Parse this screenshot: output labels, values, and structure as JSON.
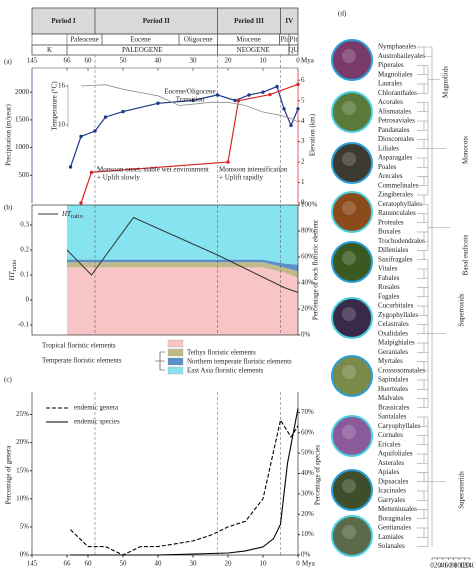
{
  "figure": {
    "timeline": {
      "periods": [
        {
          "label": "Period I",
          "start": 145,
          "end": 58
        },
        {
          "label": "Period II",
          "start": 58,
          "end": 23
        },
        {
          "label": "Period III",
          "start": 23,
          "end": 5
        },
        {
          "label": "IV",
          "start": 5,
          "end": 0
        }
      ],
      "epochs": [
        {
          "label": "Paleocene",
          "start": 66,
          "end": 56
        },
        {
          "label": "Eocene",
          "start": 56,
          "end": 34
        },
        {
          "label": "Oligocene",
          "start": 34,
          "end": 23
        },
        {
          "label": "Miocene",
          "start": 23,
          "end": 5.3
        },
        {
          "label": "Pli",
          "start": 5.3,
          "end": 2.6
        },
        {
          "label": "Plt",
          "start": 2.6,
          "end": 0
        }
      ],
      "eras": [
        {
          "label": "K",
          "start": 145,
          "end": 66
        },
        {
          "label": "PALEOGENE",
          "start": 66,
          "end": 23
        },
        {
          "label": "NEOGENE",
          "start": 23,
          "end": 2.6
        },
        {
          "label": "QU",
          "start": 2.6,
          "end": 0
        }
      ]
    },
    "panel_d": {
      "label": "(d)",
      "orders": [
        "Nymphaeales",
        "Austrobaileyales",
        "Piperales",
        "Magnoliales",
        "Laurales",
        "Chloranthales",
        "Acorales",
        "Alismatales",
        "Petrosaviales",
        "Pandanales",
        "Dioscoreales",
        "Liliales",
        "Asparagales",
        "Poales",
        "Arecales",
        "Commelinales",
        "Zingiberales",
        "Ceratophyllales",
        "Ranunculales",
        "Proteales",
        "Buxales",
        "Trochodendrales",
        "Dilleniales",
        "Saxifragales",
        "Vitales",
        "Fabales",
        "Rosales",
        "Fagales",
        "Cucurbitales",
        "Zygophyllales",
        "Celastrales",
        "Oxalidales",
        "Malpighiales",
        "Geraniales",
        "Myrtales",
        "Crossosomatales",
        "Sapindales",
        "Huerteales",
        "Malvales",
        "Brassicales",
        "Santalales",
        "Caryophyllales",
        "Cornales",
        "Ericales",
        "Aquifoliales",
        "Asterales",
        "Apiales",
        "Dipsacales",
        "Icacinales",
        "Garryales",
        "Metteniusales",
        "Boraginales",
        "Gentianales",
        "Lamiales",
        "Solanales"
      ],
      "groups": [
        "Magnoliids",
        "Monocots",
        "Basal eudicots",
        "Superrosids",
        "Superasterids"
      ],
      "xlim": [
        0,
        140
      ],
      "xticks": [
        0,
        20,
        40,
        60,
        80,
        100,
        120,
        140
      ]
    }
  },
  "chart_data": [
    {
      "type": "line",
      "label": "(a)",
      "x_label": "Mya",
      "xlim": [
        145,
        0
      ],
      "xticks": [
        145,
        66,
        60,
        50,
        40,
        30,
        20,
        10,
        0
      ],
      "ylim": [
        0,
        2400
      ],
      "yticks": [
        500,
        1000,
        1500,
        2000
      ],
      "y_label": "Precipitation (m/year)",
      "y2lim": [
        0,
        6.5
      ],
      "y2ticks": [
        0,
        1,
        2,
        3,
        4,
        5,
        6
      ],
      "y2_label": "Elevation (km)",
      "y3lim": [
        10,
        16
      ],
      "y3ticks": [
        10,
        16
      ],
      "y3_label": "Temperature (°C)",
      "series": [
        {
          "color": "#1f3a8a",
          "axis": "y",
          "x": [
            65,
            62,
            58,
            55,
            50,
            40,
            30,
            23,
            18,
            14,
            10,
            6,
            4,
            2,
            0
          ],
          "values": [
            650,
            1200,
            1300,
            1550,
            1650,
            1800,
            1850,
            1950,
            1850,
            1950,
            2000,
            2100,
            1700,
            1400,
            1700
          ]
        },
        {
          "color": "#d62728",
          "axis": "y2",
          "x": [
            62,
            59,
            20,
            17,
            8,
            0
          ],
          "values": [
            0,
            1.5,
            2,
            5,
            5.3,
            5.8
          ]
        },
        {
          "color": "#8c8c8c",
          "axis": "y3",
          "x": [
            62,
            55,
            50,
            45,
            40,
            34,
            30,
            25,
            20,
            15,
            10,
            5,
            2,
            0
          ],
          "values": [
            16,
            16.2,
            15.5,
            15,
            14.5,
            13,
            13.2,
            13.5,
            13.5,
            13,
            12,
            11.5,
            11,
            10.5
          ]
        }
      ],
      "annotations": [
        {
          "lines": [
            "Eocene/Oligocene",
            "Transition"
          ]
        },
        {
          "lines": [
            "Monsoon onset, stable wet environment",
            "+ Uplift slowly"
          ]
        },
        {
          "lines": [
            "Monsoon intensification",
            "+ Uplift rapidly"
          ]
        }
      ]
    },
    {
      "type": "stacked_area",
      "label": "(b)",
      "ylim": [
        -0.14,
        0.38
      ],
      "yticks": [
        0.3,
        0.2,
        0.1,
        0,
        -0.1
      ],
      "y_label": {
        "main": "HT",
        "sub": "ratio"
      },
      "y2lim": [
        0,
        100
      ],
      "y2ticks": [
        {
          "value": 0,
          "label": "0%"
        },
        {
          "value": 20,
          "label": "20%"
        },
        {
          "value": 40,
          "label": "40%"
        },
        {
          "value": 60,
          "label": "60%"
        },
        {
          "value": 80,
          "label": "80%"
        },
        {
          "value": 100,
          "label": "100%"
        }
      ],
      "y2_label": "Percentage of each floristic element",
      "line": {
        "name": {
          "main": "HT",
          "sub": "ratio"
        },
        "color": "#333333",
        "x": [
          66,
          59,
          47,
          23,
          4,
          0
        ],
        "values": [
          0.2,
          0.1,
          0.33,
          0.18,
          0.05,
          0.03
        ]
      },
      "x": [
        66,
        59,
        50,
        40,
        30,
        23,
        10,
        4,
        0
      ],
      "series": [
        {
          "name": "Tropical floristic elements",
          "color": "#f7c5c5",
          "text_color": "#d42020",
          "values": [
            52,
            52,
            52,
            52,
            52,
            52,
            52,
            48,
            44
          ]
        },
        {
          "name": "Tethys floristic elements",
          "color": "#c2b98a",
          "values": [
            4,
            4,
            4,
            4,
            4,
            4,
            4,
            4,
            5
          ]
        },
        {
          "name": "Northern temperate floristic elements",
          "color": "#5a8fc8",
          "values": [
            2,
            2,
            2,
            2,
            2,
            2,
            2,
            3,
            5
          ]
        },
        {
          "name": "East Asia floristic elements",
          "color": "#86e4f0",
          "values": [
            42,
            42,
            42,
            42,
            42,
            42,
            42,
            45,
            46
          ]
        }
      ],
      "group_label": {
        "text": "Temperate floristic elements",
        "color": "#1a3fb0"
      }
    },
    {
      "type": "line",
      "label": "(c)",
      "x_label": "Mya",
      "xlim": [
        145,
        0
      ],
      "xticks": [
        145,
        66,
        60,
        50,
        40,
        30,
        20,
        10,
        0
      ],
      "ylim": [
        0,
        29
      ],
      "yticks": [
        {
          "value": 0,
          "label": "0%"
        },
        {
          "value": 5,
          "label": "5%"
        },
        {
          "value": 10,
          "label": "10%"
        },
        {
          "value": 15,
          "label": "15%"
        },
        {
          "value": 20,
          "label": "20%"
        },
        {
          "value": 25,
          "label": "25%"
        }
      ],
      "y_label": "Percentage of genera",
      "y2lim": [
        0,
        80
      ],
      "y2ticks": [
        {
          "value": 0,
          "label": "0%"
        },
        {
          "value": 10,
          "label": "10%"
        },
        {
          "value": 20,
          "label": "20%"
        },
        {
          "value": 30,
          "label": "30%"
        },
        {
          "value": 40,
          "label": "40%"
        },
        {
          "value": 50,
          "label": "50%"
        },
        {
          "value": 60,
          "label": "60%"
        },
        {
          "value": 70,
          "label": "70%"
        }
      ],
      "y2_label": "Percentage of species",
      "series": [
        {
          "name": "endemic genera",
          "color": "#000000",
          "dashed": true,
          "axis": "y",
          "x": [
            65,
            60,
            55,
            50,
            45,
            40,
            35,
            30,
            25,
            20,
            15,
            10,
            5,
            2,
            0
          ],
          "values": [
            4.5,
            1.5,
            1.5,
            0,
            1.5,
            1.5,
            2,
            2.5,
            3.5,
            5,
            6,
            10,
            24,
            21,
            23
          ]
        },
        {
          "name": "endemic species",
          "color": "#000000",
          "dashed": false,
          "axis": "y2",
          "x": [
            65,
            50,
            40,
            30,
            20,
            15,
            10,
            7,
            5,
            3,
            0
          ],
          "values": [
            0,
            0,
            0,
            0.5,
            1,
            2,
            4,
            8,
            15,
            45,
            72
          ]
        }
      ]
    }
  ]
}
